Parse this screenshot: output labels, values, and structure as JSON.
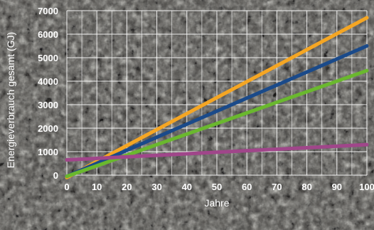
{
  "chart_data": {
    "type": "line",
    "xlabel": "Jahre",
    "ylabel": "Energieverbrauch gesamt (GJ)",
    "xlim": [
      0,
      100
    ],
    "ylim": [
      0,
      7000
    ],
    "x_ticks": [
      0,
      10,
      20,
      30,
      40,
      50,
      60,
      70,
      80,
      90,
      100
    ],
    "y_ticks": [
      0,
      1000,
      2000,
      3000,
      4000,
      5000,
      6000,
      7000
    ],
    "grid": true,
    "series": [
      {
        "color": "#f5a623",
        "x": [
          0,
          100
        ],
        "values": [
          -100,
          6700
        ]
      },
      {
        "color": "#1a4a8a",
        "x": [
          0,
          100
        ],
        "values": [
          -50,
          5500
        ]
      },
      {
        "color": "#6ab82e",
        "x": [
          0,
          100
        ],
        "values": [
          -50,
          4450
        ]
      },
      {
        "color": "#a0468a",
        "x": [
          0,
          100
        ],
        "values": [
          650,
          1300
        ]
      }
    ]
  }
}
